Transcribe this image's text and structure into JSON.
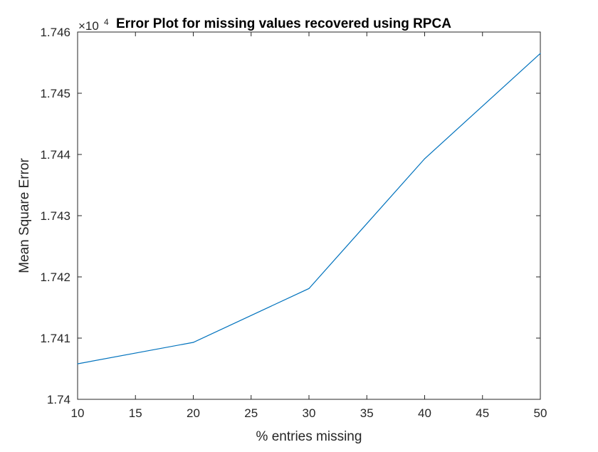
{
  "chart_data": {
    "type": "line",
    "title": "Error Plot for missing values recovered using RPCA",
    "xlabel": "% entries missing",
    "ylabel": "Mean Square Error",
    "y_exponent": {
      "base": "×10",
      "power": "4"
    },
    "x": [
      10,
      20,
      30,
      40,
      50
    ],
    "series": [
      {
        "values": [
          17405.8,
          17409.3,
          17418.1,
          17439.3,
          17456.5
        ]
      }
    ],
    "xlim": [
      10,
      50
    ],
    "ylim": [
      17400,
      17460
    ],
    "x_ticks": [
      10,
      15,
      20,
      25,
      30,
      35,
      40,
      45,
      50
    ],
    "x_tick_labels": [
      "10",
      "15",
      "20",
      "25",
      "30",
      "35",
      "40",
      "45",
      "50"
    ],
    "y_ticks": [
      17400,
      17410,
      17420,
      17430,
      17440,
      17450,
      17460
    ],
    "y_tick_labels": [
      "1.74",
      "1.741",
      "1.742",
      "1.743",
      "1.744",
      "1.745",
      "1.746"
    ],
    "grid": false,
    "legend": "none",
    "colors": {
      "line": "#0072bd",
      "axes": "#262626",
      "background": "#ffffff"
    }
  }
}
